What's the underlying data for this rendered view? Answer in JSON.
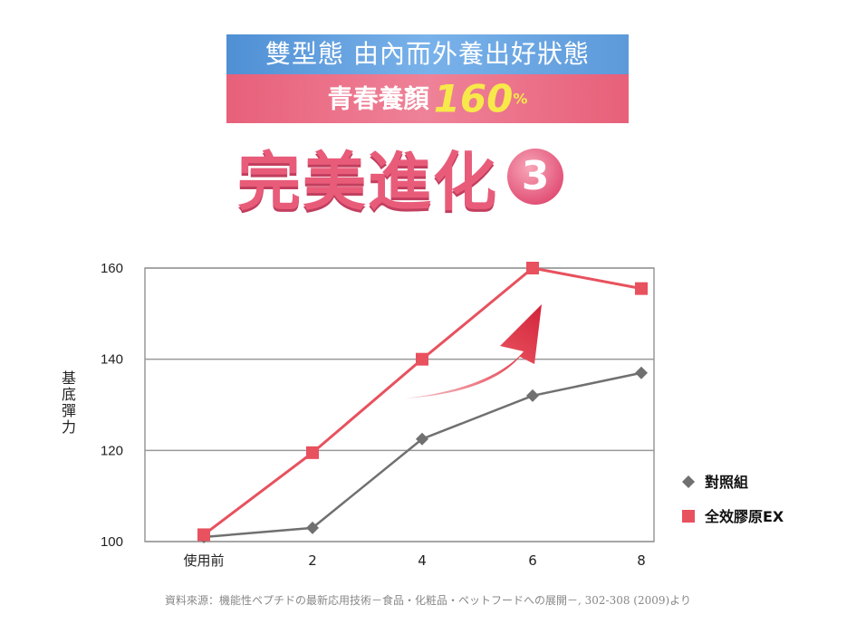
{
  "header": {
    "line1": "雙型態 由內而外養出好狀態",
    "line2_text": "青春養顏",
    "line2_number": "160",
    "line2_unit": "%",
    "headline": "完美進化",
    "badge": "3"
  },
  "chart_data": {
    "type": "line",
    "categories": [
      "使用前",
      "2",
      "4",
      "6",
      "8"
    ],
    "ylabel": "基底彈力",
    "xlabel": "",
    "ylim": [
      100,
      160
    ],
    "yticks": [
      "100",
      "120",
      "140",
      "160"
    ],
    "grid": true,
    "legend_position": "right",
    "series": [
      {
        "name": "對照組",
        "values": [
          101,
          103,
          122.5,
          132,
          137
        ],
        "color": "#707070",
        "marker": "diamond"
      },
      {
        "name": "全效膠原EX",
        "values": [
          101.5,
          119.5,
          140,
          160,
          155.5
        ],
        "color": "#e8515e",
        "marker": "square"
      }
    ],
    "annotation": "upward-arrow"
  },
  "source_note": "資料來源：機能性ペプチドの最新応用技術－食品・化粧品・ペットフードへの展開－, 302-308 (2009)より"
}
